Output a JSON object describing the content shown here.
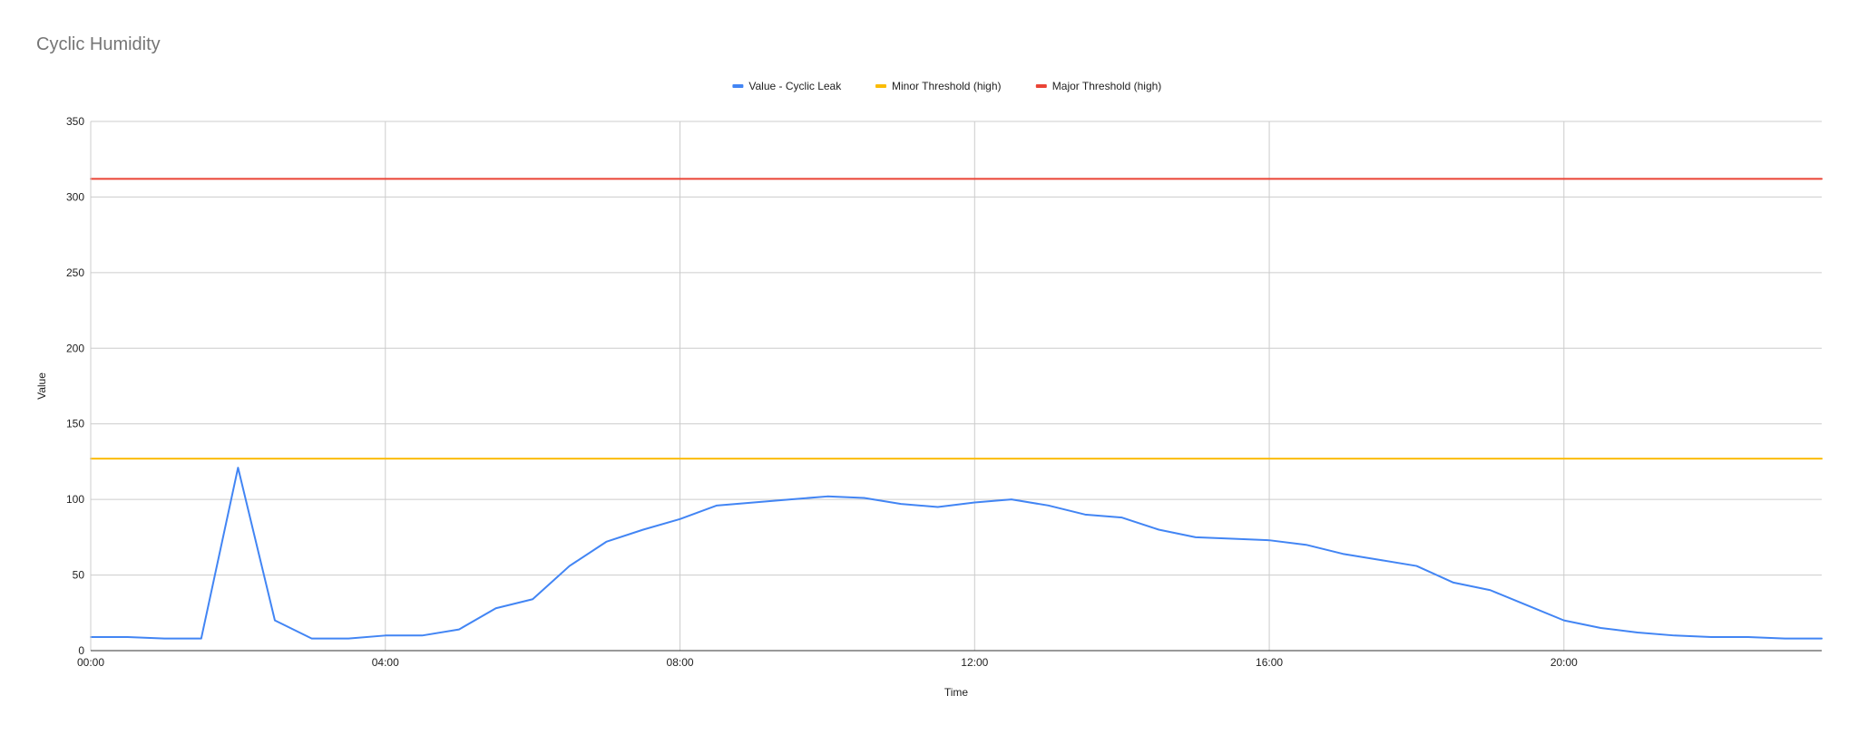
{
  "chart_data": {
    "type": "line",
    "title": "Cyclic Humidity",
    "xlabel": "Time",
    "ylabel": "Value",
    "ylim": [
      0,
      350
    ],
    "yticks": [
      0,
      50,
      100,
      150,
      200,
      250,
      300,
      350
    ],
    "xlim": [
      "00:00",
      "23:30"
    ],
    "xticks": [
      "00:00",
      "04:00",
      "08:00",
      "12:00",
      "16:00",
      "20:00"
    ],
    "grid": true,
    "legend_position": "top-center",
    "x": [
      "00:00",
      "00:30",
      "01:00",
      "01:30",
      "02:00",
      "02:30",
      "03:00",
      "03:30",
      "04:00",
      "04:30",
      "05:00",
      "05:30",
      "06:00",
      "06:30",
      "07:00",
      "07:30",
      "08:00",
      "08:30",
      "09:00",
      "09:30",
      "10:00",
      "10:30",
      "11:00",
      "11:30",
      "12:00",
      "12:30",
      "13:00",
      "13:30",
      "14:00",
      "14:30",
      "15:00",
      "15:30",
      "16:00",
      "16:30",
      "17:00",
      "17:30",
      "18:00",
      "18:30",
      "19:00",
      "19:30",
      "20:00",
      "20:30",
      "21:00",
      "21:30",
      "22:00",
      "22:30",
      "23:00",
      "23:30"
    ],
    "series": [
      {
        "name": "Value - Cyclic Leak",
        "color": "#4285f4",
        "values": [
          9,
          9,
          8,
          8,
          121,
          20,
          8,
          8,
          10,
          10,
          14,
          28,
          34,
          56,
          72,
          80,
          87,
          96,
          98,
          100,
          102,
          101,
          97,
          95,
          98,
          100,
          96,
          90,
          88,
          80,
          75,
          74,
          73,
          70,
          64,
          60,
          56,
          45,
          40,
          30,
          20,
          15,
          12,
          10,
          9,
          9,
          8,
          8
        ]
      },
      {
        "name": "Minor Threshold (high)",
        "color": "#fbbc04",
        "values": [
          127,
          127,
          127,
          127,
          127,
          127,
          127,
          127,
          127,
          127,
          127,
          127,
          127,
          127,
          127,
          127,
          127,
          127,
          127,
          127,
          127,
          127,
          127,
          127,
          127,
          127,
          127,
          127,
          127,
          127,
          127,
          127,
          127,
          127,
          127,
          127,
          127,
          127,
          127,
          127,
          127,
          127,
          127,
          127,
          127,
          127,
          127,
          127
        ]
      },
      {
        "name": "Major Threshold (high)",
        "color": "#ea4335",
        "values": [
          312,
          312,
          312,
          312,
          312,
          312,
          312,
          312,
          312,
          312,
          312,
          312,
          312,
          312,
          312,
          312,
          312,
          312,
          312,
          312,
          312,
          312,
          312,
          312,
          312,
          312,
          312,
          312,
          312,
          312,
          312,
          312,
          312,
          312,
          312,
          312,
          312,
          312,
          312,
          312,
          312,
          312,
          312,
          312,
          312,
          312,
          312,
          312
        ]
      }
    ]
  }
}
